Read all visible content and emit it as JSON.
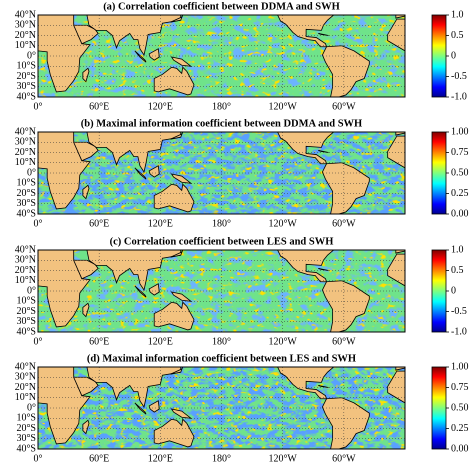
{
  "panels": [
    {
      "title": "(a) Correlation coefficient between DDMA and SWH",
      "colorbar": {
        "clim": [
          -1,
          1
        ],
        "ticks": [
          {
            "value": 1,
            "label": "1.0"
          },
          {
            "value": 0.5,
            "label": "0.5"
          },
          0,
          {
            "value": -0.5,
            "label": "-0.5"
          },
          {
            "value": -1,
            "label": "-1.0"
          }
        ]
      }
    },
    {
      "title": "(b) Maximal information coefficient between DDMA and SWH",
      "colorbar": {
        "clim": [
          0,
          1
        ],
        "ticks": [
          {
            "value": 1,
            "label": "1.00"
          },
          {
            "value": 0.75,
            "label": "0.75"
          },
          {
            "value": 0.5,
            "label": "0.50"
          },
          {
            "value": 0.25,
            "label": "0.25"
          },
          {
            "value": 0,
            "label": "0.00"
          }
        ]
      }
    },
    {
      "title": "(c) Correlation coefficient between LES and SWH",
      "colorbar": {
        "clim": [
          -1,
          1
        ],
        "ticks": [
          {
            "value": 1,
            "label": "1.0"
          },
          {
            "value": 0.5,
            "label": "0.5"
          },
          0,
          {
            "value": -0.5,
            "label": "-0.5"
          },
          {
            "value": -1,
            "label": "-1.0"
          }
        ]
      }
    },
    {
      "title": "(d) Maximal information coefficient between LES and SWH",
      "colorbar": {
        "clim": [
          0,
          1
        ],
        "ticks": [
          {
            "value": 1,
            "label": "1.00"
          },
          {
            "value": 0.75,
            "label": "0.75"
          },
          {
            "value": 0.5,
            "label": "0.50"
          },
          {
            "value": 0.25,
            "label": "0.25"
          },
          {
            "value": 0,
            "label": "0.00"
          }
        ]
      }
    }
  ],
  "lat_labels": [
    "40°N",
    "30°N",
    "20°N",
    "10°N",
    "0°",
    "10°S",
    "20°S",
    "30°S",
    "40°S"
  ],
  "lon_labels": [
    "0°",
    "60°E",
    "120°E",
    "180°",
    "120°W",
    "60°W"
  ]
}
